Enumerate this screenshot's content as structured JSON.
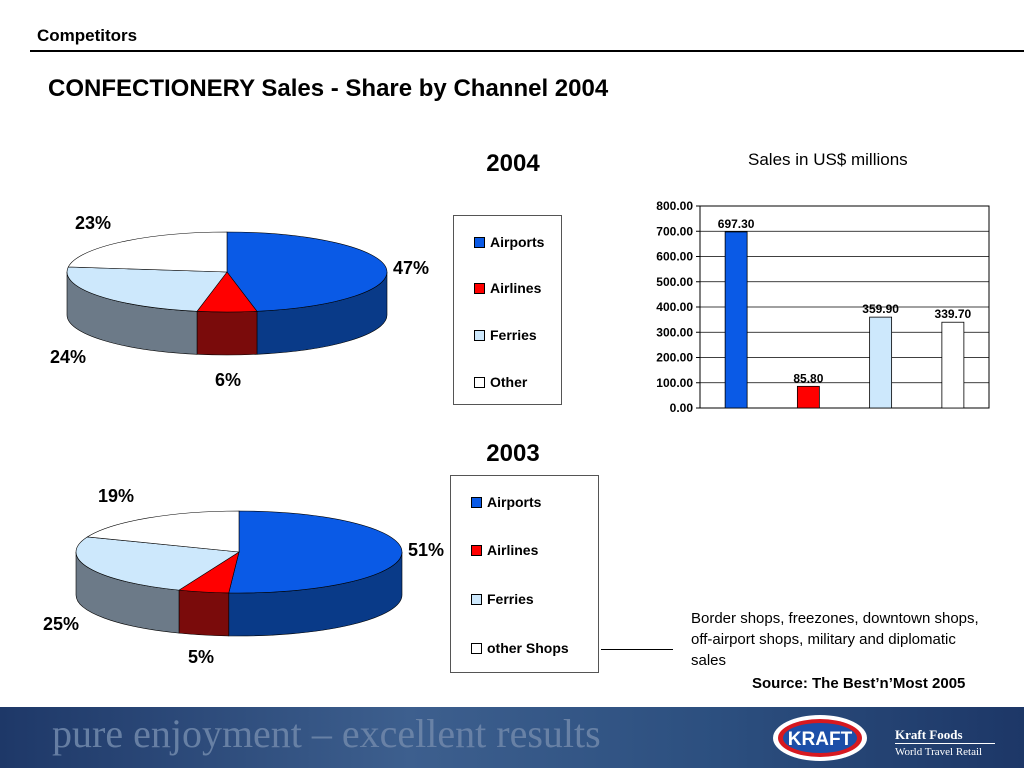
{
  "header": {
    "section": "Competitors",
    "title": "CONFECTIONERY Sales - Share by Channel 2004"
  },
  "colors": {
    "airports": "#0a5ae6",
    "airports_dark": "#093a88",
    "airlines": "#ff0000",
    "airlines_dark": "#7a0b0b",
    "ferries": "#cde8fc",
    "ferries_dark": "#6c7a88",
    "other": "#ffffff",
    "other_dark": "#b0b6bc"
  },
  "chart_data": [
    {
      "type": "pie",
      "title": "2004",
      "categories": [
        "Airports",
        "Airlines",
        "Ferries",
        "Other"
      ],
      "values": [
        47,
        6,
        24,
        23
      ],
      "labels": [
        "47%",
        "6%",
        "24%",
        "23%"
      ]
    },
    {
      "type": "pie",
      "title": "2003",
      "categories": [
        "Airports",
        "Airlines",
        "Ferries",
        "other Shops"
      ],
      "values": [
        51,
        5,
        25,
        19
      ],
      "labels": [
        "51%",
        "5%",
        "25%",
        "19%"
      ]
    },
    {
      "type": "bar",
      "title": "Sales in US$ millions",
      "categories": [
        "Airports",
        "Airlines",
        "Ferries",
        "Other"
      ],
      "values": [
        697.3,
        85.8,
        359.9,
        339.7
      ],
      "value_labels": [
        "697.30",
        "85.80",
        "359.90",
        "339.70"
      ],
      "ylim": [
        0,
        800
      ],
      "yticks": [
        "0.00",
        "100.00",
        "200.00",
        "300.00",
        "400.00",
        "500.00",
        "600.00",
        "700.00",
        "800.00"
      ],
      "grid": true
    }
  ],
  "note": "Border shops, freezones, downtown shops, off-airport shops, military and diplomatic sales",
  "source": "Source: The Best’n’Most 2005",
  "footer": {
    "slogan": "pure enjoyment – excellent results",
    "logo_text": "KRAFT",
    "brand": "Kraft Foods",
    "division": "World Travel Retail"
  }
}
